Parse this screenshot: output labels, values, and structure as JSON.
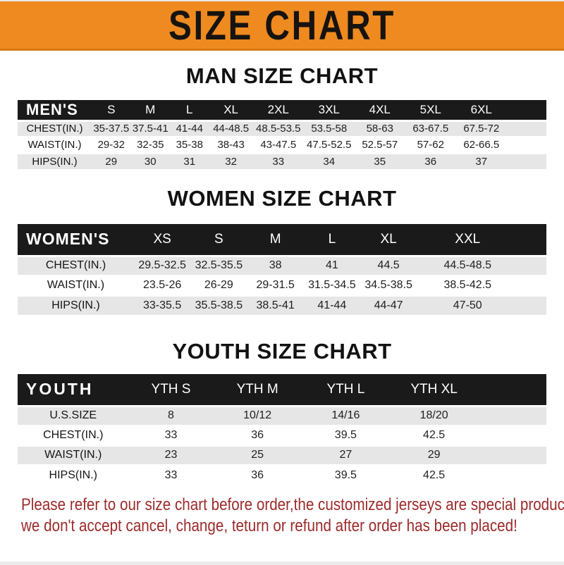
{
  "banner": {
    "title": "SIZE CHART",
    "bg_color": "#ee8a1f",
    "text_color": "#161310"
  },
  "headings": {
    "man": "MAN SIZE CHART",
    "women": "WOMEN SIZE CHART",
    "youth": "YOUTH SIZE CHART"
  },
  "colors": {
    "header_bar": "#1a1a1a",
    "row_gray": "#e6e6e6",
    "footer_red": "#9c2b2b"
  },
  "men_table": {
    "header": [
      "MEN'S",
      "S",
      "M",
      "L",
      "XL",
      "2XL",
      "3XL",
      "4XL",
      "5XL",
      "6XL",
      ""
    ],
    "rows": [
      {
        "label": "CHEST(IN.)",
        "values": [
          "35-37.5",
          "37.5-41",
          "41-44",
          "44-48.5",
          "48.5-53.5",
          "53.5-58",
          "58-63",
          "63-67.5",
          "67.5-72",
          ""
        ]
      },
      {
        "label": "WAIST(IN.)",
        "values": [
          "29-32",
          "32-35",
          "35-38",
          "38-43",
          "43-47.5",
          "47.5-52.5",
          "52.5-57",
          "57-62",
          "62-66.5",
          ""
        ]
      },
      {
        "label": "HIPS(IN.)",
        "values": [
          "29",
          "30",
          "31",
          "32",
          "33",
          "34",
          "35",
          "36",
          "37",
          ""
        ]
      }
    ]
  },
  "women_table": {
    "header": [
      "WOMEN'S",
      "XS",
      "S",
      "M",
      "L",
      "XL",
      "XXL",
      ""
    ],
    "rows": [
      {
        "label": "CHEST(IN.)",
        "values": [
          "29.5-32.5",
          "32.5-35.5",
          "38",
          "41",
          "44.5",
          "44.5-48.5",
          ""
        ]
      },
      {
        "label": "WAIST(IN.)",
        "values": [
          "23.5-26",
          "26-29",
          "29-31.5",
          "31.5-34.5",
          "34.5-38.5",
          "38.5-42.5",
          ""
        ]
      },
      {
        "label": "HIPS(IN.)",
        "values": [
          "33-35.5",
          "35.5-38.5",
          "38.5-41",
          "41-44",
          "44-47",
          "47-50",
          ""
        ]
      }
    ]
  },
  "youth_table": {
    "header": [
      "YOUTH",
      "YTH S",
      "YTH M",
      "YTH L",
      "YTH XL",
      ""
    ],
    "rows": [
      {
        "label": "U.S.SIZE",
        "values": [
          "8",
          "10/12",
          "14/16",
          "18/20",
          ""
        ]
      },
      {
        "label": "CHEST(IN.)",
        "values": [
          "33",
          "36",
          "39.5",
          "42.5",
          ""
        ]
      },
      {
        "label": "WAIST(IN.)",
        "values": [
          "23",
          "25",
          "27",
          "29",
          ""
        ]
      },
      {
        "label": "HIPS(IN.)",
        "values": [
          "33",
          "36",
          "39.5",
          "42.5",
          ""
        ]
      }
    ]
  },
  "footer": {
    "line1": "Please refer to our size chart before order,the customized jerseys are special products,",
    "line2": "we don't accept cancel, change, teturn or refund after order has been placed!"
  }
}
